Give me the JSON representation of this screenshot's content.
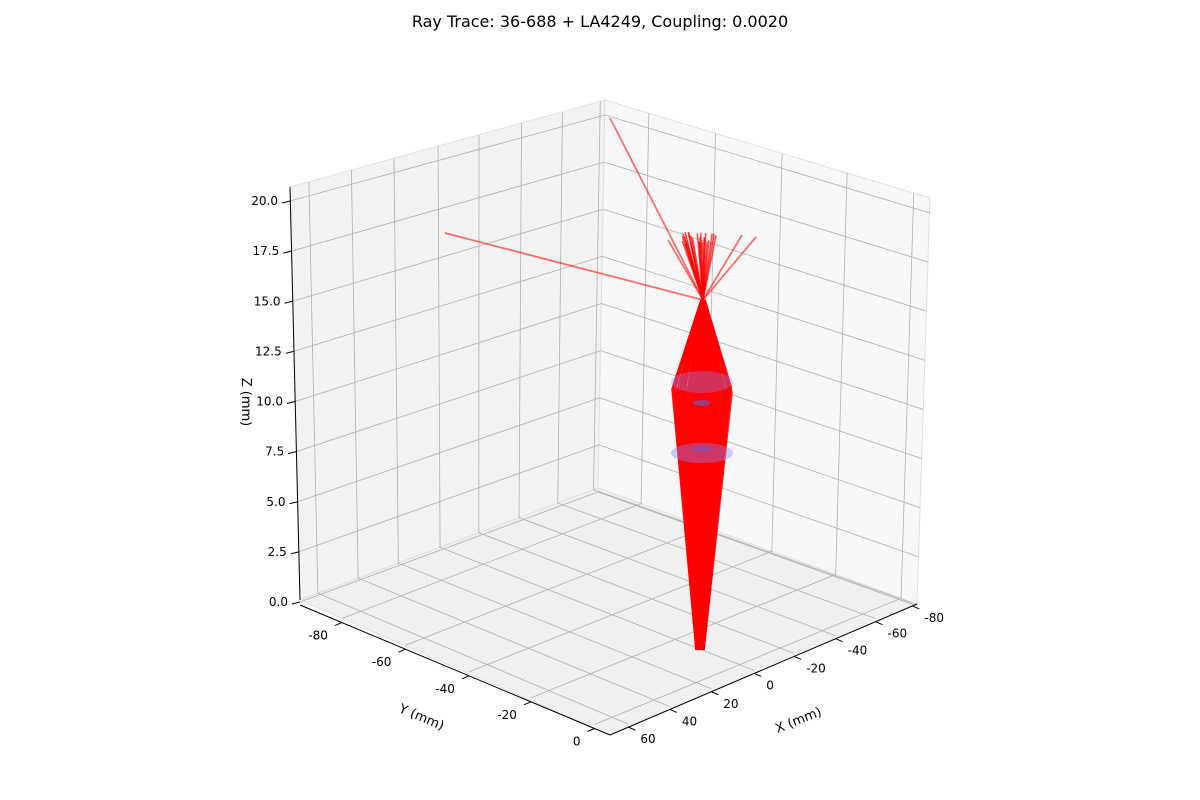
{
  "chart_data": {
    "type": "line",
    "projection": "3d",
    "title": "Ray Trace: 36-688 + LA4249, Coupling: 0.0020",
    "axes": {
      "x": {
        "label": "X (mm)",
        "ticks": [
          60,
          40,
          20,
          0,
          -20,
          -40,
          -60,
          -80
        ],
        "range": [
          -90,
          65
        ]
      },
      "y": {
        "label": "Y (mm)",
        "ticks": [
          -80,
          -60,
          -40,
          -20,
          0
        ],
        "range": [
          -95,
          8
        ]
      },
      "z": {
        "label": "Z (mm)",
        "ticks": [
          "0.0",
          "2.5",
          "5.0",
          "7.5",
          "10.0",
          "12.5",
          "15.0",
          "17.5",
          "20.0"
        ],
        "range": [
          0,
          20.5
        ]
      }
    },
    "grid": true,
    "series": [
      {
        "kind": "rays",
        "color": "#ff0000",
        "description_values": {
          "source_z": 0,
          "lens1_z": 7.5,
          "lens2_z": 10.8,
          "focus_z": 15.2
        }
      },
      {
        "kind": "lens-surfaces",
        "color": "#8080ff"
      }
    ],
    "colors": {
      "ray": "#ff0000",
      "lens": "#8888ff",
      "pane": "#f2f2f2",
      "grid": "#b0b0b0"
    }
  }
}
